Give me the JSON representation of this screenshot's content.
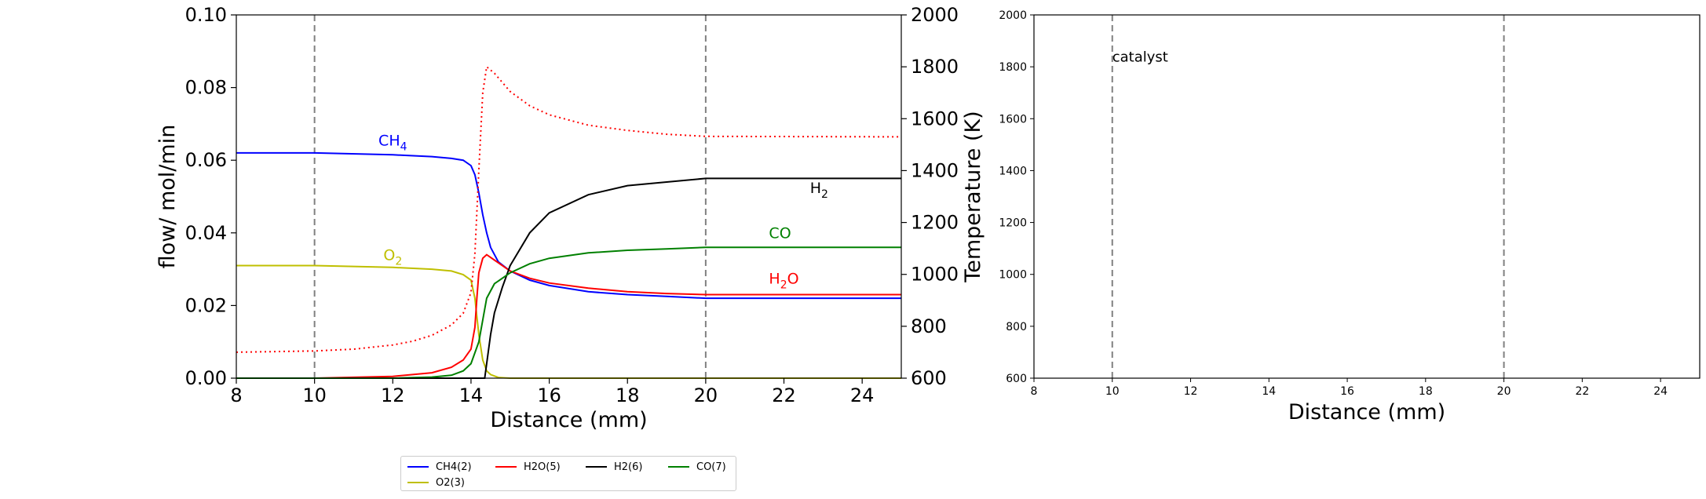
{
  "chart_data": [
    {
      "type": "line",
      "title": "",
      "xlabel": "Distance (mm)",
      "ylabel": "flow/ mol/min",
      "y2label": "Temperature (K)",
      "xlim": [
        8,
        25
      ],
      "ylim": [
        0,
        0.1
      ],
      "y2lim": [
        600,
        2000
      ],
      "xticks": [
        "8",
        "10",
        "12",
        "14",
        "16",
        "18",
        "20",
        "22",
        "24"
      ],
      "yticks": [
        "0.00",
        "0.02",
        "0.04",
        "0.06",
        "0.08",
        "0.10"
      ],
      "y2ticks": [
        "600",
        "800",
        "1000",
        "1200",
        "1400",
        "1600",
        "1800",
        "2000"
      ],
      "vlines": [
        10,
        20
      ],
      "series": [
        {
          "name": "CH4(2)",
          "color": "#0000ff",
          "axis": "left",
          "x": [
            8,
            10,
            12,
            13,
            13.5,
            13.8,
            14.0,
            14.1,
            14.2,
            14.3,
            14.4,
            14.5,
            14.7,
            15.0,
            15.5,
            16,
            17,
            18,
            19,
            20,
            25
          ],
          "y": [
            0.062,
            0.062,
            0.0615,
            0.061,
            0.0605,
            0.06,
            0.0585,
            0.056,
            0.051,
            0.045,
            0.04,
            0.036,
            0.032,
            0.0295,
            0.027,
            0.0255,
            0.0238,
            0.023,
            0.0225,
            0.022,
            0.022
          ]
        },
        {
          "name": "O2(3)",
          "color": "#bfbf00",
          "axis": "left",
          "x": [
            8,
            10,
            12,
            13,
            13.5,
            13.8,
            14.0,
            14.1,
            14.2,
            14.3,
            14.4,
            14.5,
            14.7,
            15.0,
            20,
            25
          ],
          "y": [
            0.031,
            0.031,
            0.0305,
            0.03,
            0.0295,
            0.0285,
            0.027,
            0.022,
            0.012,
            0.005,
            0.002,
            0.001,
            0.0002,
            0,
            0,
            0
          ]
        },
        {
          "name": "H2O(5)",
          "color": "#ff0000",
          "axis": "left",
          "x": [
            8,
            10,
            12,
            13,
            13.5,
            13.8,
            14.0,
            14.1,
            14.15,
            14.2,
            14.3,
            14.4,
            14.6,
            15.0,
            15.5,
            16,
            17,
            18,
            19,
            20,
            25
          ],
          "y": [
            0,
            0,
            0.0005,
            0.0015,
            0.003,
            0.005,
            0.008,
            0.014,
            0.022,
            0.029,
            0.033,
            0.034,
            0.0325,
            0.0295,
            0.0275,
            0.0262,
            0.0248,
            0.0238,
            0.0233,
            0.023,
            0.023
          ]
        },
        {
          "name": "H2(6)",
          "color": "#000000",
          "axis": "left",
          "x": [
            8,
            14.0,
            14.35,
            14.5,
            14.6,
            14.8,
            15.0,
            15.5,
            16,
            17,
            18,
            19,
            20,
            25
          ],
          "y": [
            0,
            0,
            0,
            0.012,
            0.018,
            0.025,
            0.031,
            0.04,
            0.0455,
            0.0505,
            0.053,
            0.054,
            0.055,
            0.055
          ]
        },
        {
          "name": "CO(7)",
          "color": "#008000",
          "axis": "left",
          "x": [
            8,
            12,
            13,
            13.5,
            13.8,
            14.0,
            14.2,
            14.3,
            14.4,
            14.6,
            15.0,
            15.5,
            16,
            17,
            18,
            19,
            20,
            25
          ],
          "y": [
            0,
            0,
            0.0003,
            0.0008,
            0.002,
            0.004,
            0.01,
            0.016,
            0.022,
            0.026,
            0.029,
            0.0315,
            0.033,
            0.0345,
            0.0352,
            0.0356,
            0.036,
            0.036
          ]
        },
        {
          "name": "",
          "color": "#ff0000",
          "axis": "right",
          "dashed": true,
          "x": [
            8,
            10,
            11,
            12,
            12.5,
            13,
            13.5,
            13.8,
            14.0,
            14.1,
            14.2,
            14.3,
            14.4,
            14.6,
            14.8,
            15.0,
            15.5,
            16,
            17,
            18,
            19,
            20,
            25
          ],
          "y": [
            700,
            705,
            712,
            728,
            742,
            765,
            805,
            850,
            930,
            1080,
            1400,
            1700,
            1800,
            1775,
            1740,
            1705,
            1650,
            1615,
            1575,
            1555,
            1540,
            1532,
            1530
          ]
        }
      ],
      "annotations": [
        {
          "base": "CH",
          "sub": "4",
          "x": 12.0,
          "y": 0.064,
          "color": "#0000ff"
        },
        {
          "base": "O",
          "sub": "2",
          "x": 12.0,
          "y": 0.0325,
          "color": "#bfbf00"
        },
        {
          "base": "H",
          "sub": "2",
          "x": 22.9,
          "y": 0.051,
          "color": "#000000"
        },
        {
          "base": "CO",
          "sub": "",
          "x": 21.9,
          "y": 0.0385,
          "color": "#008000"
        },
        {
          "base": "H",
          "sub": "2",
          "tail": "O",
          "x": 22.0,
          "y": 0.026,
          "color": "#ff0000"
        }
      ]
    },
    {
      "type": "line",
      "title": "",
      "xlabel": "Distance (mm)",
      "ylabel": "",
      "xlim": [
        8,
        25
      ],
      "ylim": [
        600,
        2000
      ],
      "xticks": [
        "8",
        "10",
        "12",
        "14",
        "16",
        "18",
        "20",
        "22",
        "24"
      ],
      "yticks": [
        "600",
        "800",
        "1000",
        "1200",
        "1400",
        "1600",
        "1800",
        "2000"
      ],
      "vlines": [
        10,
        20
      ],
      "series": [],
      "annotations": [
        {
          "text": "catalyst",
          "x": 10.0,
          "y": 1820,
          "color": "#000000"
        }
      ]
    }
  ],
  "legend": {
    "items": [
      {
        "label": "CH4(2)",
        "color": "#0000ff"
      },
      {
        "label": "H2O(5)",
        "color": "#ff0000"
      },
      {
        "label": "H2(6)",
        "color": "#000000"
      },
      {
        "label": "CO(7)",
        "color": "#008000"
      },
      {
        "label": "O2(3)",
        "color": "#bfbf00"
      }
    ]
  }
}
